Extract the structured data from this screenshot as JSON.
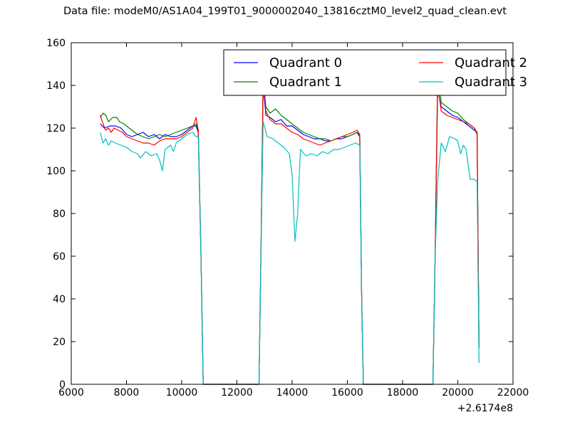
{
  "title": "Data file: modeM0/AS1A04_199T01_9000002040_13816cztM0_level2_quad_clean.evt",
  "chart_data": {
    "type": "line",
    "title": "Data file: modeM0/AS1A04_199T01_9000002040_13816cztM0_level2_quad_clean.evt",
    "xlabel": "",
    "ylabel": "",
    "x_offset_label": "+2.6174e8",
    "xlim": [
      6000,
      22000
    ],
    "ylim": [
      0,
      160
    ],
    "xticks": [
      6000,
      8000,
      10000,
      12000,
      14000,
      16000,
      18000,
      20000,
      22000
    ],
    "yticks": [
      0,
      20,
      40,
      60,
      80,
      100,
      120,
      140,
      160
    ],
    "grid": false,
    "legend": {
      "position": "top-right",
      "columns": 2
    },
    "series": [
      {
        "name": "Quadrant 0",
        "color": "#0000ff",
        "points": [
          [
            7050,
            122
          ],
          [
            7200,
            120
          ],
          [
            7400,
            121
          ],
          [
            7600,
            121
          ],
          [
            7800,
            120
          ],
          [
            8000,
            117
          ],
          [
            8200,
            116
          ],
          [
            8400,
            117
          ],
          [
            8600,
            118
          ],
          [
            8800,
            116
          ],
          [
            9000,
            117
          ],
          [
            9200,
            115
          ],
          [
            9400,
            117
          ],
          [
            9600,
            116
          ],
          [
            9800,
            116
          ],
          [
            10000,
            117
          ],
          [
            10200,
            119
          ],
          [
            10400,
            121
          ],
          [
            10520,
            121
          ],
          [
            10600,
            118
          ],
          [
            10700,
            60
          ],
          [
            10780,
            0
          ],
          [
            12000,
            0
          ],
          [
            12800,
            0
          ],
          [
            12870,
            60
          ],
          [
            12950,
            140
          ],
          [
            13050,
            126
          ],
          [
            13200,
            125
          ],
          [
            13400,
            123
          ],
          [
            13600,
            124
          ],
          [
            13800,
            121
          ],
          [
            14000,
            121
          ],
          [
            14200,
            119
          ],
          [
            14400,
            117
          ],
          [
            14600,
            116
          ],
          [
            14800,
            115
          ],
          [
            15000,
            115
          ],
          [
            15200,
            114
          ],
          [
            15400,
            114
          ],
          [
            15600,
            115
          ],
          [
            15800,
            115
          ],
          [
            16000,
            116
          ],
          [
            16200,
            117
          ],
          [
            16350,
            118
          ],
          [
            16450,
            116
          ],
          [
            16520,
            40
          ],
          [
            16580,
            0
          ],
          [
            18000,
            0
          ],
          [
            19100,
            0
          ],
          [
            19180,
            60
          ],
          [
            19270,
            138
          ],
          [
            19400,
            130
          ],
          [
            19600,
            128
          ],
          [
            19800,
            126
          ],
          [
            20000,
            125
          ],
          [
            20200,
            123
          ],
          [
            20400,
            121
          ],
          [
            20600,
            119
          ],
          [
            20700,
            118
          ],
          [
            20770,
            17
          ]
        ]
      },
      {
        "name": "Quadrant 1",
        "color": "#008000",
        "points": [
          [
            7050,
            125
          ],
          [
            7150,
            127
          ],
          [
            7250,
            126
          ],
          [
            7350,
            123
          ],
          [
            7500,
            125
          ],
          [
            7650,
            125
          ],
          [
            7750,
            123
          ],
          [
            7900,
            122
          ],
          [
            8000,
            121
          ],
          [
            8200,
            119
          ],
          [
            8400,
            117
          ],
          [
            8600,
            116
          ],
          [
            8800,
            115
          ],
          [
            9000,
            116
          ],
          [
            9200,
            117
          ],
          [
            9400,
            116
          ],
          [
            9600,
            117
          ],
          [
            9800,
            118
          ],
          [
            10000,
            119
          ],
          [
            10200,
            120
          ],
          [
            10400,
            121
          ],
          [
            10520,
            122
          ],
          [
            10600,
            119
          ],
          [
            10700,
            60
          ],
          [
            10780,
            0
          ],
          [
            12000,
            0
          ],
          [
            12800,
            0
          ],
          [
            12870,
            60
          ],
          [
            12950,
            143
          ],
          [
            13050,
            130
          ],
          [
            13200,
            127
          ],
          [
            13400,
            129
          ],
          [
            13600,
            126
          ],
          [
            13800,
            124
          ],
          [
            14000,
            122
          ],
          [
            14200,
            120
          ],
          [
            14400,
            118
          ],
          [
            14600,
            117
          ],
          [
            14800,
            116
          ],
          [
            15000,
            115
          ],
          [
            15200,
            115
          ],
          [
            15400,
            114
          ],
          [
            15600,
            115
          ],
          [
            15800,
            116
          ],
          [
            16000,
            116
          ],
          [
            16200,
            117
          ],
          [
            16350,
            118
          ],
          [
            16450,
            117
          ],
          [
            16520,
            40
          ],
          [
            16580,
            0
          ],
          [
            18000,
            0
          ],
          [
            19100,
            0
          ],
          [
            19180,
            60
          ],
          [
            19270,
            145
          ],
          [
            19400,
            132
          ],
          [
            19600,
            130
          ],
          [
            19800,
            128
          ],
          [
            20000,
            127
          ],
          [
            20200,
            124
          ],
          [
            20400,
            122
          ],
          [
            20600,
            120
          ],
          [
            20700,
            118
          ],
          [
            20770,
            17
          ]
        ]
      },
      {
        "name": "Quadrant 2",
        "color": "#ff0000",
        "points": [
          [
            7050,
            126
          ],
          [
            7150,
            122
          ],
          [
            7250,
            119
          ],
          [
            7350,
            120
          ],
          [
            7450,
            118
          ],
          [
            7550,
            120
          ],
          [
            7700,
            119
          ],
          [
            7850,
            118
          ],
          [
            8000,
            116
          ],
          [
            8200,
            115
          ],
          [
            8400,
            114
          ],
          [
            8600,
            113
          ],
          [
            8800,
            113
          ],
          [
            9000,
            112
          ],
          [
            9200,
            114
          ],
          [
            9400,
            115
          ],
          [
            9600,
            115
          ],
          [
            9800,
            115
          ],
          [
            10000,
            116
          ],
          [
            10200,
            118
          ],
          [
            10400,
            120
          ],
          [
            10520,
            125
          ],
          [
            10600,
            119
          ],
          [
            10700,
            60
          ],
          [
            10780,
            0
          ],
          [
            12000,
            0
          ],
          [
            12800,
            0
          ],
          [
            12870,
            60
          ],
          [
            12950,
            143
          ],
          [
            13050,
            128
          ],
          [
            13200,
            124
          ],
          [
            13400,
            122
          ],
          [
            13600,
            122
          ],
          [
            13800,
            120
          ],
          [
            14000,
            118
          ],
          [
            14200,
            117
          ],
          [
            14400,
            115
          ],
          [
            14600,
            114
          ],
          [
            14800,
            113
          ],
          [
            15000,
            112
          ],
          [
            15200,
            113
          ],
          [
            15400,
            114
          ],
          [
            15600,
            115
          ],
          [
            15800,
            116
          ],
          [
            16000,
            117
          ],
          [
            16200,
            118
          ],
          [
            16350,
            119
          ],
          [
            16450,
            117
          ],
          [
            16520,
            40
          ],
          [
            16580,
            0
          ],
          [
            18000,
            0
          ],
          [
            19100,
            0
          ],
          [
            19180,
            60
          ],
          [
            19270,
            140
          ],
          [
            19400,
            128
          ],
          [
            19600,
            126
          ],
          [
            19800,
            125
          ],
          [
            20000,
            124
          ],
          [
            20200,
            123
          ],
          [
            20400,
            122
          ],
          [
            20600,
            120
          ],
          [
            20700,
            117
          ],
          [
            20770,
            17
          ]
        ]
      },
      {
        "name": "Quadrant 3",
        "color": "#00bfbf",
        "points": [
          [
            7050,
            118
          ],
          [
            7150,
            113
          ],
          [
            7250,
            115
          ],
          [
            7350,
            112
          ],
          [
            7450,
            114
          ],
          [
            7600,
            113
          ],
          [
            7800,
            112
          ],
          [
            8000,
            111
          ],
          [
            8200,
            109
          ],
          [
            8400,
            108
          ],
          [
            8500,
            106
          ],
          [
            8700,
            109
          ],
          [
            8900,
            107
          ],
          [
            9100,
            108
          ],
          [
            9200,
            105
          ],
          [
            9300,
            100
          ],
          [
            9400,
            110
          ],
          [
            9600,
            112
          ],
          [
            9700,
            109
          ],
          [
            9800,
            113
          ],
          [
            10000,
            115
          ],
          [
            10200,
            117
          ],
          [
            10400,
            118
          ],
          [
            10520,
            116
          ],
          [
            10600,
            116
          ],
          [
            10700,
            60
          ],
          [
            10780,
            0
          ],
          [
            12000,
            0
          ],
          [
            12800,
            0
          ],
          [
            12870,
            60
          ],
          [
            12950,
            123
          ],
          [
            13100,
            116
          ],
          [
            13300,
            115
          ],
          [
            13500,
            113
          ],
          [
            13700,
            111
          ],
          [
            13900,
            108
          ],
          [
            14000,
            98
          ],
          [
            14100,
            67
          ],
          [
            14200,
            80
          ],
          [
            14300,
            110
          ],
          [
            14500,
            107
          ],
          [
            14700,
            108
          ],
          [
            14900,
            107
          ],
          [
            15100,
            109
          ],
          [
            15300,
            108
          ],
          [
            15500,
            110
          ],
          [
            15700,
            110
          ],
          [
            15900,
            111
          ],
          [
            16100,
            112
          ],
          [
            16300,
            113
          ],
          [
            16450,
            112
          ],
          [
            16520,
            40
          ],
          [
            16580,
            0
          ],
          [
            18000,
            0
          ],
          [
            19100,
            0
          ],
          [
            19180,
            60
          ],
          [
            19270,
            95
          ],
          [
            19400,
            113
          ],
          [
            19550,
            109
          ],
          [
            19700,
            116
          ],
          [
            19900,
            115
          ],
          [
            20000,
            114
          ],
          [
            20100,
            108
          ],
          [
            20200,
            112
          ],
          [
            20300,
            110
          ],
          [
            20450,
            96
          ],
          [
            20600,
            96
          ],
          [
            20700,
            95
          ],
          [
            20770,
            10
          ]
        ]
      }
    ]
  }
}
